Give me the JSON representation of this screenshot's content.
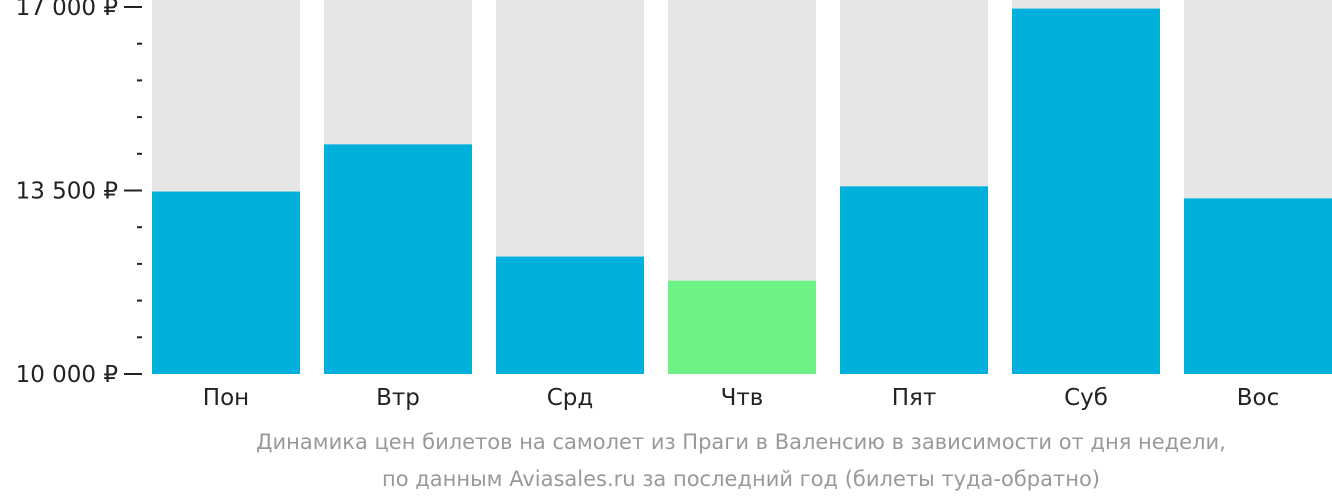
{
  "chart_data": {
    "type": "bar",
    "categories": [
      "Пон",
      "Втр",
      "Срд",
      "Чтв",
      "Пят",
      "Суб",
      "Вос"
    ],
    "values": [
      13480,
      14380,
      12240,
      11780,
      13580,
      16970,
      13350
    ],
    "ylim": [
      10000,
      17000
    ],
    "yticks": [
      {
        "value": 17000,
        "label": "17 000 ₽"
      },
      {
        "value": 13500,
        "label": "13 500 ₽"
      },
      {
        "value": 10000,
        "label": "10 000 ₽"
      }
    ],
    "minor_tick_step": 700,
    "highlight_index": 3,
    "colors": {
      "bar": "#00b0dc",
      "highlight": "#6cf285",
      "background_bar": "#e6e6e6",
      "axis_text": "#222222"
    }
  },
  "caption": {
    "line1": "Динамика цен билетов на самолет из Праги в Валенсию в зависимости от дня недели,",
    "line2": "по данным Aviasales.ru за последний год (билеты туда-обратно)"
  }
}
